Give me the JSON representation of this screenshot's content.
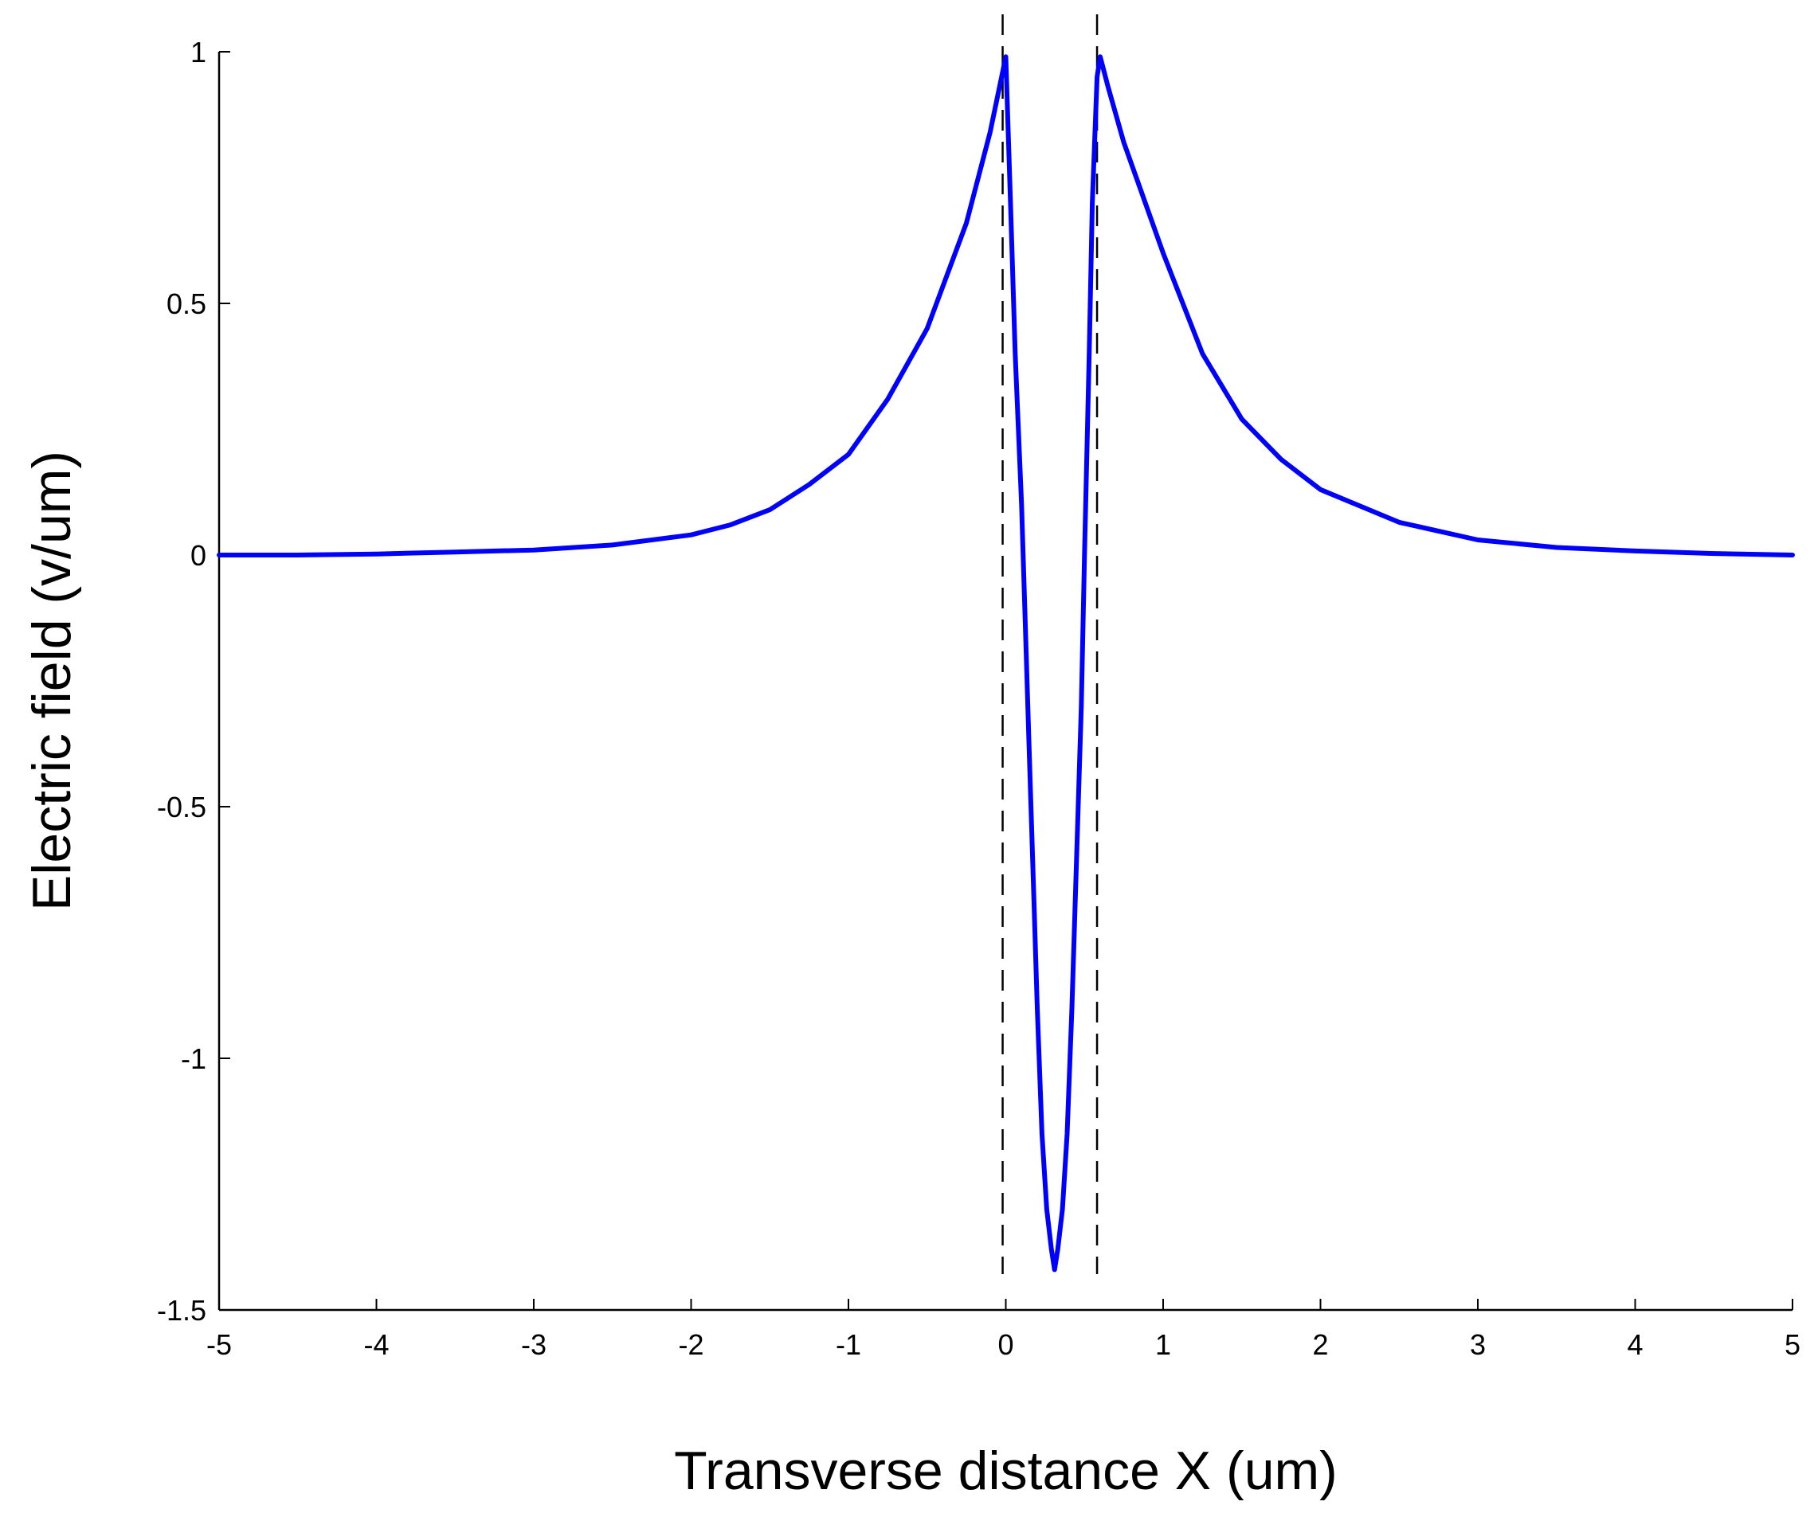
{
  "chart_data": {
    "type": "line",
    "title": "",
    "xlabel": "Transverse distance X (um)",
    "ylabel": "Electric field (v/um)",
    "xlim": [
      -5,
      5
    ],
    "ylim": [
      -1.5,
      1
    ],
    "xticks": [
      -5,
      -4,
      -3,
      -2,
      -1,
      0,
      1,
      2,
      3,
      4,
      5
    ],
    "yticks": [
      -1.5,
      -1,
      -0.5,
      0,
      0.5,
      1
    ],
    "xtick_labels": [
      "-5",
      "-4",
      "-3",
      "-2",
      "-1",
      "0",
      "1",
      "2",
      "3",
      "4",
      "5"
    ],
    "ytick_labels": [
      "-1.5",
      "-1",
      "-0.5",
      "0",
      "0.5",
      "1"
    ],
    "grid": false,
    "series": [
      {
        "color": "#0000ff",
        "x": [
          -5,
          -4.5,
          -4,
          -3.5,
          -3,
          -2.5,
          -2,
          -1.75,
          -1.5,
          -1.25,
          -1,
          -0.75,
          -0.5,
          -0.25,
          -0.1,
          0,
          0.03,
          0.06,
          0.1,
          0.13,
          0.15,
          0.18,
          0.2,
          0.23,
          0.26,
          0.29,
          0.31,
          0.33,
          0.36,
          0.39,
          0.42,
          0.45,
          0.48,
          0.5,
          0.53,
          0.55,
          0.58,
          0.6,
          0.65,
          0.75,
          1,
          1.25,
          1.5,
          1.75,
          2,
          2.5,
          3,
          3.5,
          4,
          4.5,
          5
        ],
        "y": [
          0.0,
          0.0,
          0.002,
          0.006,
          0.01,
          0.02,
          0.04,
          0.06,
          0.09,
          0.14,
          0.2,
          0.31,
          0.45,
          0.66,
          0.84,
          0.99,
          0.7,
          0.4,
          0.1,
          -0.2,
          -0.4,
          -0.7,
          -0.9,
          -1.15,
          -1.3,
          -1.38,
          -1.42,
          -1.38,
          -1.3,
          -1.15,
          -0.9,
          -0.6,
          -0.3,
          0.0,
          0.4,
          0.7,
          0.95,
          0.99,
          0.93,
          0.82,
          0.6,
          0.4,
          0.27,
          0.19,
          0.13,
          0.065,
          0.03,
          0.015,
          0.008,
          0.003,
          0.0
        ]
      }
    ],
    "vertical_lines": [
      {
        "x": -0.02,
        "style": "dashed",
        "color": "#000000"
      },
      {
        "x": 0.58,
        "style": "dashed",
        "color": "#000000"
      }
    ]
  }
}
